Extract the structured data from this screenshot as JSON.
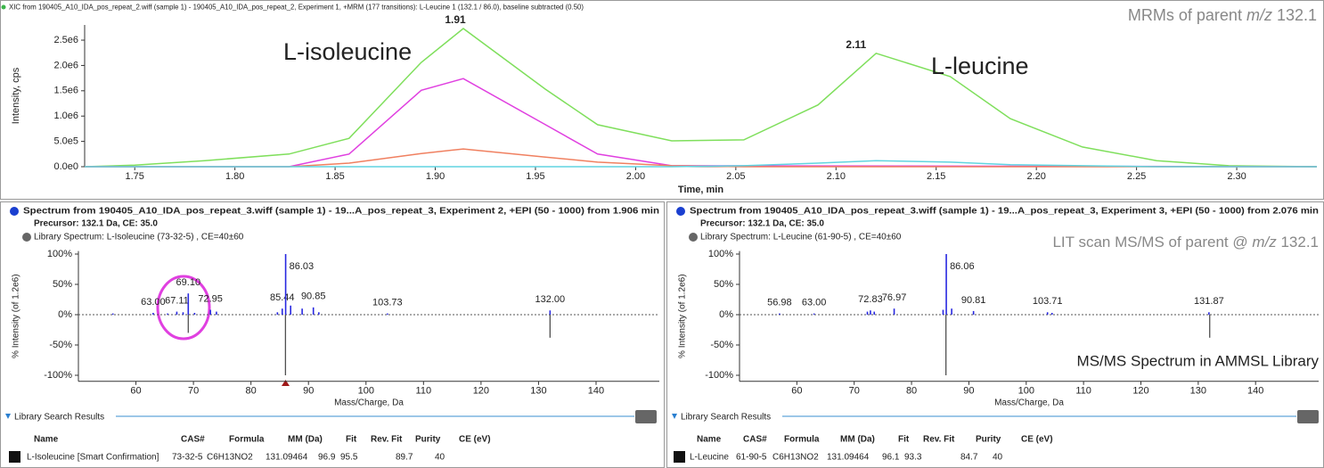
{
  "chart_data": [
    {
      "type": "line",
      "title": "XIC from 190405_A10_IDA_pos_repeat_2.wiff (sample 1) - 190405_A10_IDA_pos_repeat_2, Experiment 1, +MRM (177 transitions): L-Leucine 1 (132.1 / 86.0), baseline subtracted (0.50)",
      "x_label": "Time, min",
      "y_label": "Intensity, cps",
      "xlim": [
        1.725,
        2.34
      ],
      "ylim": [
        0,
        2800000
      ],
      "xticks": [
        {
          "value": 1.75,
          "label": "1.75"
        },
        {
          "value": 1.8,
          "label": "1.80"
        },
        {
          "value": 1.85,
          "label": "1.85"
        },
        {
          "value": 1.9,
          "label": "1.90"
        },
        {
          "value": 1.95,
          "label": "1.95"
        },
        {
          "value": 2.0,
          "label": "2.00"
        },
        {
          "value": 2.05,
          "label": "2.05"
        },
        {
          "value": 2.1,
          "label": "2.10"
        },
        {
          "value": 2.15,
          "label": "2.15"
        },
        {
          "value": 2.2,
          "label": "2.20"
        },
        {
          "value": 2.25,
          "label": "2.25"
        },
        {
          "value": 2.3,
          "label": "2.30"
        }
      ],
      "yticks": [
        {
          "value": 0,
          "label": "0.0e0"
        },
        {
          "value": 500000,
          "label": "5.0e5"
        },
        {
          "value": 1000000,
          "label": "1.0e6"
        },
        {
          "value": 1500000,
          "label": "1.5e6"
        },
        {
          "value": 2000000,
          "label": "2.0e6"
        },
        {
          "value": 2500000,
          "label": "2.5e6"
        }
      ],
      "series": [
        {
          "color": "#7fdf5c",
          "x": [
            1.725,
            1.75,
            1.785,
            1.827,
            1.857,
            1.893,
            1.914,
            1.955,
            1.981,
            2.018,
            2.054,
            2.091,
            2.12,
            2.157,
            2.187,
            2.223,
            2.26,
            2.296,
            2.34
          ],
          "values": [
            0,
            30000,
            120000,
            250000,
            560000,
            2060000,
            2730000,
            1530000,
            830000,
            510000,
            530000,
            1220000,
            2240000,
            1780000,
            950000,
            390000,
            120000,
            20000,
            0
          ]
        },
        {
          "color": "#e040e0",
          "x": [
            1.725,
            1.827,
            1.857,
            1.893,
            1.914,
            1.955,
            1.981,
            2.018,
            2.34
          ],
          "values": [
            0,
            0,
            250000,
            1510000,
            1740000,
            830000,
            250000,
            20000,
            0
          ]
        },
        {
          "color": "#f08060",
          "x": [
            1.725,
            1.827,
            1.857,
            1.893,
            1.914,
            1.955,
            1.981,
            2.018,
            2.054,
            2.34
          ],
          "values": [
            0,
            0,
            70000,
            260000,
            350000,
            190000,
            90000,
            20000,
            0,
            0
          ]
        },
        {
          "color": "#60d4e0",
          "x": [
            1.725,
            2.018,
            2.054,
            2.091,
            2.12,
            2.157,
            2.187,
            2.223,
            2.26,
            2.34
          ],
          "values": [
            0,
            0,
            20000,
            70000,
            120000,
            90000,
            40000,
            20000,
            0,
            0
          ]
        }
      ],
      "peak_labels": [
        1.91,
        2.11
      ],
      "annotations": [
        {
          "parts": [
            "MRMs of parent ",
            "m/z",
            " 132.1"
          ],
          "color": "#888888"
        },
        {
          "text": "L-isoleucine",
          "color": "#e040e0"
        },
        {
          "text": "L-leucine",
          "color": "#38c4cc"
        }
      ]
    },
    {
      "type": "stick",
      "subtitle": "Precursor: 132.1 Da, CE: 35.0",
      "x_label": "Mass/Charge, Da",
      "y_label": "% Intensity (of 1.2e6)",
      "xlim": [
        50,
        151
      ],
      "ylim": [
        -110,
        105
      ],
      "xticks": [
        60,
        70,
        80,
        90,
        100,
        110,
        120,
        130,
        140
      ],
      "yticks": [
        {
          "value": 100,
          "label": "100%"
        },
        {
          "value": 50,
          "label": "50%"
        },
        {
          "value": 0,
          "label": "0%"
        },
        {
          "value": -50,
          "label": "-50%"
        },
        {
          "value": -100,
          "label": "-100%"
        }
      ],
      "series": [
        {
          "name": "Spectrum from 190405_A10_IDA_pos_repeat_3.wiff (sample 1) - 19...A_pos_repeat_3, Experiment 2, +EPI (50 - 1000) from 1.906 min",
          "color": "#2828e0",
          "x": [
            56,
            63.0,
            65.5,
            67.11,
            68.2,
            69.1,
            70.2,
            72.95,
            74.0,
            84.6,
            85.44,
            86.03,
            86.9,
            88.9,
            90.85,
            91.8,
            103.73,
            132.0
          ],
          "values": [
            2,
            3,
            2,
            5,
            4,
            35,
            3,
            8,
            5,
            4,
            10,
            100,
            15,
            10,
            12,
            4,
            2,
            7
          ],
          "x_labels": [
            null,
            "63.00",
            null,
            "67.11",
            null,
            "69.10",
            null,
            "72.95",
            null,
            null,
            "85.44",
            "86.03",
            null,
            null,
            "90.85",
            null,
            "103.73",
            "132.00"
          ]
        },
        {
          "name": "Library Spectrum: L-Isoleucine (73-32-5) , CE=40±60",
          "color": "#505050",
          "x": [
            69.1,
            86.0,
            132.0
          ],
          "values": [
            -30,
            -100,
            -38
          ]
        }
      ],
      "results": {
        "title": "Library Search Results",
        "columns": [
          "Name",
          "CAS#",
          "Formula",
          "MM (Da)",
          "Fit",
          "Rev. Fit",
          "Purity",
          "CE (eV)"
        ],
        "rows": [
          [
            "L-Isoleucine [Smart Confirmation]",
            "73-32-5",
            "C6H13NO2",
            131.09464,
            96.9,
            95.5,
            89.7,
            40
          ]
        ]
      }
    },
    {
      "type": "stick",
      "subtitle": "Precursor: 132.1 Da, CE: 35.0",
      "x_label": "Mass/Charge, Da",
      "y_label": "% Intensity (of 1.2e6)",
      "xlim": [
        50,
        151
      ],
      "ylim": [
        -110,
        105
      ],
      "xticks": [
        60,
        70,
        80,
        90,
        100,
        110,
        120,
        130,
        140
      ],
      "yticks": [
        {
          "value": 100,
          "label": "100%"
        },
        {
          "value": 50,
          "label": "50%"
        },
        {
          "value": 0,
          "label": "0%"
        },
        {
          "value": -50,
          "label": "-50%"
        },
        {
          "value": -100,
          "label": "-100%"
        }
      ],
      "series": [
        {
          "name": "Spectrum from 190405_A10_IDA_pos_repeat_3.wiff (sample 1) - 19...A_pos_repeat_3, Experiment 3, +EPI (50 - 1000) from 2.076 min",
          "color": "#2828e0",
          "x": [
            56.98,
            63.0,
            72.3,
            72.83,
            73.5,
            76.97,
            85.5,
            86.06,
            87.0,
            90.81,
            103.71,
            104.5,
            131.87
          ],
          "values": [
            2,
            2,
            5,
            7,
            5,
            10,
            8,
            100,
            10,
            6,
            4,
            3,
            4
          ],
          "x_labels": [
            "56.98",
            "63.00",
            null,
            "72.83",
            null,
            "76.97",
            null,
            "86.06",
            null,
            "90.81",
            "103.71",
            null,
            "131.87"
          ]
        },
        {
          "name": "Library Spectrum: L-Leucine (61-90-5) , CE=40±60",
          "color": "#505050",
          "x": [
            86.0,
            132.0
          ],
          "values": [
            -100,
            -38
          ]
        }
      ],
      "annotations": [
        {
          "parts": [
            "LIT scan MS/MS of parent @ ",
            "m/z",
            " 132.1"
          ],
          "color": "#888888"
        },
        {
          "text": "MS/MS Spectrum in AMMSL Library",
          "color": "#888888"
        }
      ],
      "results": {
        "title": "Library Search Results",
        "columns": [
          "Name",
          "CAS#",
          "Formula",
          "MM (Da)",
          "Fit",
          "Rev. Fit",
          "Purity",
          "CE (eV)"
        ],
        "rows": [
          [
            "L-Leucine",
            "61-90-5",
            "C6H13NO2",
            131.09464,
            96.1,
            93.3,
            84.7,
            40
          ]
        ]
      }
    }
  ]
}
